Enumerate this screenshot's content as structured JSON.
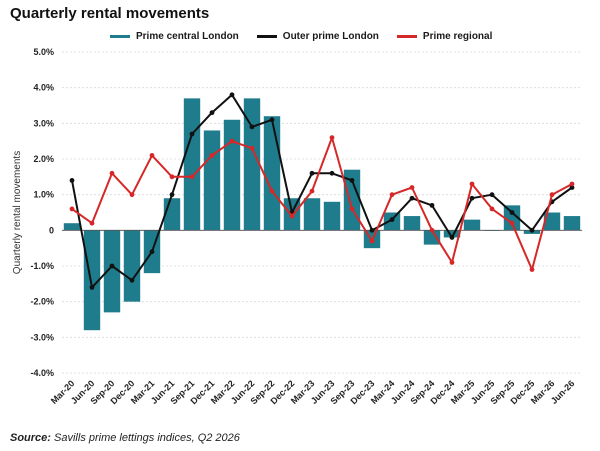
{
  "chart_data": {
    "type": "bar+line",
    "title": "Quarterly rental movements",
    "ylabel": "Quarterly rental movements",
    "xlabel": "",
    "ylim": [
      -4.0,
      5.0
    ],
    "yticks": [
      "5.0%",
      "4.0%",
      "3.0%",
      "2.0%",
      "1.0%",
      "0",
      "-1.0%",
      "-2.0%",
      "-3.0%",
      "-4.0%"
    ],
    "ytick_values": [
      5,
      4,
      3,
      2,
      1,
      0,
      -1,
      -2,
      -3,
      -4
    ],
    "x_tick_labels": [
      "Mar-20",
      "Jun-20",
      "Sep-20",
      "Dec-20",
      "Mar-21",
      "Jun-21",
      "Sep-21",
      "Dec-21",
      "Mar-22",
      "Jun-22",
      "Sep-22",
      "Dec-22",
      "Mar-23",
      "Jun-23",
      "Sep-23",
      "Dec-23",
      "Mar-24",
      "Jun-24",
      "Sep-24",
      "Dec-24",
      "Mar-25",
      "Jun-25",
      "Sep-25",
      "Dec-25",
      "Mar-26",
      "Jun-26"
    ],
    "grid": "horizontal",
    "legend_position": "top",
    "bar_series": {
      "name": "Prime central London",
      "color": "#1f7c8c",
      "values": [
        0.2,
        -2.8,
        -2.3,
        -2.0,
        -1.2,
        0.9,
        3.7,
        2.8,
        3.1,
        3.7,
        3.2,
        0.9,
        0.9,
        0.8,
        1.7,
        -0.5,
        0.5,
        0.4,
        -0.4,
        -0.2,
        0.3,
        0.0,
        0.7,
        -0.1,
        0.5,
        0.4
      ]
    },
    "line_series": [
      {
        "name": "Outer prime London",
        "color": "#111111",
        "values": [
          1.4,
          -1.6,
          -1.0,
          -1.4,
          -0.6,
          1.0,
          2.7,
          3.3,
          3.8,
          2.9,
          3.1,
          0.5,
          1.6,
          1.6,
          1.4,
          0.0,
          0.3,
          0.9,
          0.7,
          -0.2,
          0.9,
          1.0,
          0.5,
          0.0,
          0.8,
          1.2
        ]
      },
      {
        "name": "Prime regional",
        "color": "#d62828",
        "values": [
          0.6,
          0.2,
          1.6,
          1.0,
          2.1,
          1.5,
          1.5,
          2.1,
          2.5,
          2.3,
          1.1,
          0.4,
          1.1,
          2.6,
          0.6,
          -0.3,
          1.0,
          1.2,
          0.0,
          -0.9,
          1.3,
          0.6,
          0.2,
          -1.1,
          1.0,
          1.3
        ]
      }
    ]
  },
  "source": {
    "label": "Source:",
    "text": "Savills prime lettings indices, Q2 2026"
  }
}
